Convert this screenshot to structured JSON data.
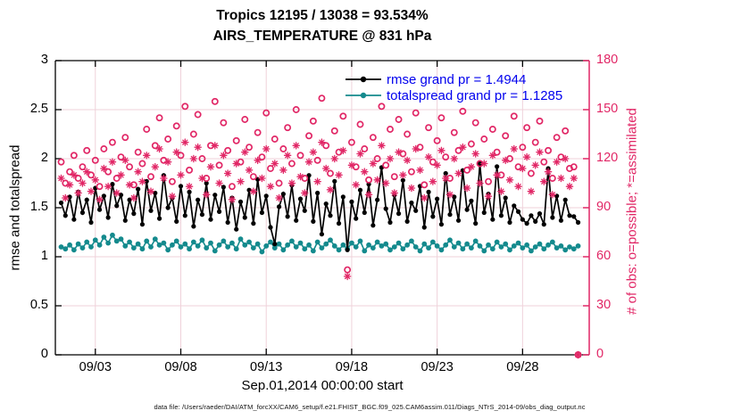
{
  "header": {
    "title_line1": "Tropics 12195 / 13038 = 93.534%",
    "title_line2": "AIRS_TEMPERATURE @ 831 hPa"
  },
  "legend": {
    "text_color": "#0000ee",
    "entries": [
      {
        "label": "rmse grand pr = 1.4944",
        "series": "rmse"
      },
      {
        "label": "totalspread grand pr = 1.1285",
        "series": "totalspread"
      }
    ]
  },
  "footer": {
    "text": "data file: /Users/raeder/DAI/ATM_forcXX/CAM6_setup/f.e21.FHIST_BGC.f09_025.CAM6assim.011/Diags_NTrS_2014-09/obs_diag_output.nc"
  },
  "chart_data": {
    "type": "line",
    "title": "Tropics 12195 / 13038 = 93.534%",
    "subtitle": "AIRS_TEMPERATURE @ 831 hPa",
    "xlabel": "Sep.01,2014 00:00:00 start",
    "ylabel_left": "rmse and totalspread",
    "ylabel_right": "# of obs: o=possible; *=assimilated",
    "grid": true,
    "grid_color": "#efd2da",
    "axis_color_left": "#000000",
    "axis_color_right": "#e12766",
    "xlim": [
      0.66,
      31.9
    ],
    "ylim_left": [
      0,
      3
    ],
    "ylim_right": [
      0,
      180
    ],
    "xticks": [
      {
        "day": 3,
        "label": "09/03"
      },
      {
        "day": 8,
        "label": "09/08"
      },
      {
        "day": 13,
        "label": "09/13"
      },
      {
        "day": 18,
        "label": "09/18"
      },
      {
        "day": 23,
        "label": "09/23"
      },
      {
        "day": 28,
        "label": "09/28"
      }
    ],
    "yticks_left": [
      {
        "v": 0,
        "label": "0"
      },
      {
        "v": 0.5,
        "label": "0.5"
      },
      {
        "v": 1,
        "label": "1"
      },
      {
        "v": 1.5,
        "label": "1.5"
      },
      {
        "v": 2,
        "label": "2"
      },
      {
        "v": 2.5,
        "label": "2.5"
      },
      {
        "v": 3,
        "label": "3"
      }
    ],
    "yticks_right": [
      {
        "v": 0,
        "label": "0"
      },
      {
        "v": 30,
        "label": "30"
      },
      {
        "v": 60,
        "label": "60"
      },
      {
        "v": 90,
        "label": "90"
      },
      {
        "v": 120,
        "label": "120"
      },
      {
        "v": 150,
        "label": "150"
      },
      {
        "v": 180,
        "label": "180"
      }
    ],
    "x": {
      "units": "day of Sep 2014, 6-hourly",
      "start": 1,
      "step": 0.25,
      "count": 122
    },
    "series": [
      {
        "name": "rmse",
        "axis": "left",
        "color": "#000000",
        "marker": "filled-circle",
        "grand_pr": 1.4944,
        "values": [
          1.55,
          1.42,
          1.61,
          1.38,
          1.66,
          1.45,
          1.58,
          1.35,
          1.7,
          1.48,
          1.62,
          1.4,
          1.74,
          1.52,
          1.63,
          1.37,
          1.58,
          1.44,
          1.69,
          1.33,
          1.77,
          1.47,
          1.65,
          1.39,
          1.83,
          1.5,
          1.6,
          1.36,
          1.72,
          1.42,
          1.66,
          1.31,
          1.58,
          1.43,
          1.75,
          1.38,
          1.63,
          1.46,
          1.71,
          1.35,
          1.6,
          1.28,
          1.56,
          1.4,
          1.68,
          1.34,
          1.79,
          1.45,
          1.62,
          1.3,
          1.13,
          1.51,
          1.64,
          1.41,
          1.73,
          1.37,
          1.59,
          1.47,
          1.83,
          1.36,
          1.65,
          1.23,
          1.54,
          1.42,
          1.77,
          1.34,
          1.61,
          1.07,
          1.56,
          1.39,
          1.68,
          1.45,
          1.74,
          1.32,
          1.58,
          1.91,
          1.49,
          1.35,
          1.63,
          1.44,
          1.78,
          1.36,
          1.55,
          1.47,
          1.72,
          1.3,
          1.66,
          1.41,
          1.59,
          1.33,
          1.85,
          1.43,
          1.61,
          1.37,
          1.88,
          1.48,
          1.57,
          1.34,
          1.95,
          1.45,
          1.64,
          1.38,
          1.92,
          1.42,
          1.6,
          1.35,
          1.52,
          1.46,
          1.38,
          1.34,
          1.42,
          1.36,
          1.44,
          1.33,
          1.9,
          1.4,
          1.62,
          1.37,
          1.58,
          1.42,
          1.41,
          1.35
        ]
      },
      {
        "name": "totalspread",
        "axis": "left",
        "color": "#148a8d",
        "marker": "filled-circle",
        "grand_pr": 1.1285,
        "values": [
          1.1,
          1.08,
          1.12,
          1.07,
          1.13,
          1.09,
          1.15,
          1.1,
          1.17,
          1.12,
          1.2,
          1.14,
          1.22,
          1.16,
          1.18,
          1.11,
          1.15,
          1.09,
          1.13,
          1.08,
          1.16,
          1.1,
          1.18,
          1.12,
          1.14,
          1.07,
          1.12,
          1.16,
          1.1,
          1.13,
          1.08,
          1.15,
          1.11,
          1.17,
          1.09,
          1.14,
          1.06,
          1.12,
          1.16,
          1.1,
          1.14,
          1.08,
          1.18,
          1.12,
          1.15,
          1.09,
          1.13,
          1.05,
          1.11,
          1.15,
          1.09,
          1.13,
          1.07,
          1.12,
          1.16,
          1.1,
          1.14,
          1.08,
          1.12,
          1.06,
          1.15,
          1.09,
          1.13,
          1.17,
          1.11,
          1.07,
          1.12,
          1.08,
          1.14,
          1.1,
          1.16,
          1.06,
          1.12,
          1.09,
          1.15,
          1.11,
          1.13,
          1.07,
          1.1,
          1.14,
          1.08,
          1.12,
          1.16,
          1.1,
          1.06,
          1.13,
          1.09,
          1.15,
          1.11,
          1.07,
          1.12,
          1.17,
          1.1,
          1.14,
          1.08,
          1.13,
          1.09,
          1.16,
          1.11,
          1.06,
          1.12,
          1.08,
          1.15,
          1.1,
          1.13,
          1.07,
          1.11,
          1.14,
          1.09,
          1.12,
          1.06,
          1.1,
          1.13,
          1.08,
          1.12,
          1.15,
          1.09,
          1.11,
          1.07,
          1.1,
          1.08,
          1.11
        ]
      },
      {
        "name": "possible",
        "axis": "right",
        "color": "#e12766",
        "marker": "open-circle",
        "values": [
          118,
          105,
          112,
          122,
          108,
          115,
          125,
          110,
          119,
          103,
          126,
          112,
          130,
          108,
          121,
          133,
          115,
          104,
          124,
          117,
          138,
          109,
          128,
          145,
          119,
          132,
          106,
          140,
          122,
          152,
          113,
          135,
          147,
          120,
          108,
          128,
          155,
          116,
          142,
          125,
          103,
          131,
          118,
          144,
          127,
          109,
          136,
          121,
          148,
          114,
          132,
          105,
          126,
          139,
          117,
          150,
          122,
          108,
          134,
          143,
          119,
          157,
          128,
          111,
          137,
          124,
          146,
          52,
          130,
          115,
          141,
          126,
          107,
          133,
          120,
          152,
          116,
          138,
          109,
          144,
          123,
          135,
          112,
          148,
          127,
          104,
          139,
          118,
          131,
          145,
          121,
          108,
          136,
          125,
          149,
          113,
          129,
          142,
          117,
          132,
          106,
          138,
          124,
          110,
          134,
          120,
          146,
          115,
          127,
          139,
          111,
          130,
          143,
          118,
          125,
          108,
          133,
          121,
          137,
          114,
          115,
          0
        ]
      },
      {
        "name": "assimilated",
        "axis": "right",
        "color": "#e12766",
        "marker": "asterisk",
        "values": [
          108,
          96,
          104,
          110,
          99,
          105,
          112,
          100,
          107,
          95,
          114,
          103,
          118,
          99,
          110,
          119,
          104,
          96,
          112,
          106,
          122,
          100,
          115,
          126,
          108,
          118,
          97,
          124,
          110,
          130,
          103,
          120,
          127,
          108,
          98,
          115,
          128,
          105,
          122,
          111,
          95,
          117,
          106,
          124,
          113,
          100,
          119,
          108,
          126,
          103,
          117,
          96,
          113,
          122,
          105,
          128,
          109,
          99,
          118,
          124,
          106,
          130,
          114,
          101,
          120,
          110,
          125,
          48,
          116,
          104,
          123,
          112,
          98,
          117,
          107,
          128,
          105,
          120,
          99,
          124,
          110,
          119,
          102,
          126,
          113,
          96,
          121,
          106,
          116,
          125,
          108,
          98,
          120,
          111,
          127,
          102,
          115,
          123,
          105,
          117,
          97,
          122,
          110,
          100,
          119,
          107,
          126,
          103,
          114,
          121,
          100,
          116,
          124,
          106,
          112,
          98,
          118,
          108,
          120,
          103,
          108,
          0
        ]
      }
    ]
  }
}
